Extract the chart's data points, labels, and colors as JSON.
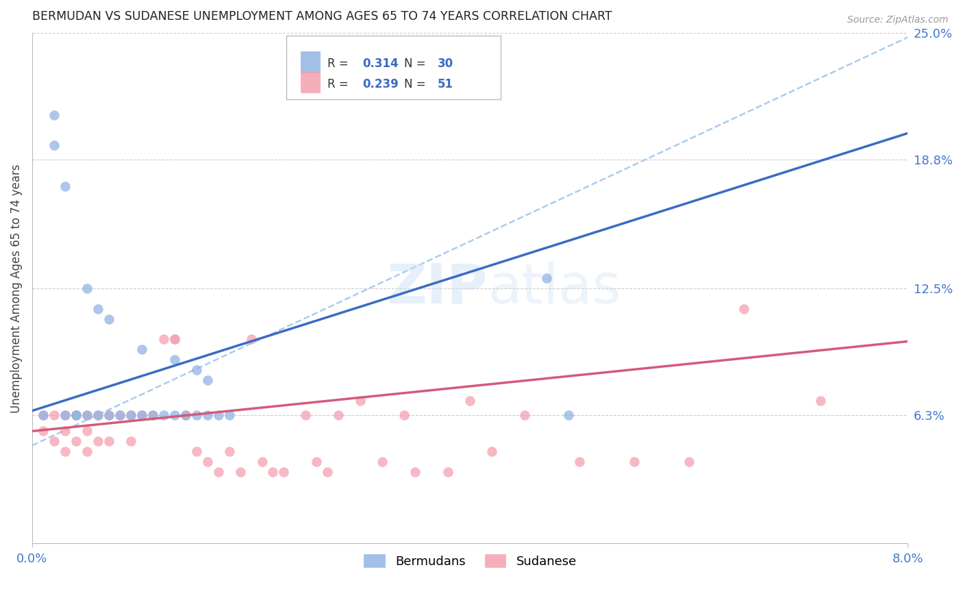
{
  "title": "BERMUDAN VS SUDANESE UNEMPLOYMENT AMONG AGES 65 TO 74 YEARS CORRELATION CHART",
  "source": "Source: ZipAtlas.com",
  "ylabel_label": "Unemployment Among Ages 65 to 74 years",
  "legend_labels": [
    "Bermudans",
    "Sudanese"
  ],
  "bermudan_color": "#92b4e3",
  "sudanese_color": "#f5a0b0",
  "bermudan_line_color": "#3a6bc4",
  "sudanese_line_color": "#d45a7a",
  "bermudan_dashed_color": "#aaccee",
  "r_bermuda": "0.314",
  "n_bermuda": "30",
  "r_sudan": "0.239",
  "n_sudan": "51",
  "xlim": [
    0.0,
    0.08
  ],
  "ylim": [
    0.0,
    0.25
  ],
  "ytick_vals": [
    0.063,
    0.125,
    0.188,
    0.25
  ],
  "ytick_labels": [
    "6.3%",
    "12.5%",
    "18.8%",
    "25.0%"
  ],
  "xtick_vals": [
    0.0,
    0.08
  ],
  "xtick_labels": [
    "0.0%",
    "8.0%"
  ],
  "background_color": "#ffffff",
  "bermudan_x": [
    0.001,
    0.002,
    0.002,
    0.003,
    0.003,
    0.004,
    0.004,
    0.005,
    0.005,
    0.006,
    0.006,
    0.007,
    0.007,
    0.008,
    0.009,
    0.01,
    0.01,
    0.011,
    0.012,
    0.013,
    0.013,
    0.014,
    0.015,
    0.015,
    0.016,
    0.016,
    0.017,
    0.018,
    0.047,
    0.049
  ],
  "bermudan_y": [
    0.063,
    0.21,
    0.195,
    0.175,
    0.063,
    0.063,
    0.063,
    0.125,
    0.063,
    0.115,
    0.063,
    0.11,
    0.063,
    0.063,
    0.063,
    0.063,
    0.095,
    0.063,
    0.063,
    0.063,
    0.09,
    0.063,
    0.063,
    0.085,
    0.063,
    0.08,
    0.063,
    0.063,
    0.13,
    0.063
  ],
  "sudanese_x": [
    0.001,
    0.001,
    0.002,
    0.002,
    0.003,
    0.003,
    0.003,
    0.004,
    0.004,
    0.005,
    0.005,
    0.005,
    0.006,
    0.006,
    0.007,
    0.007,
    0.008,
    0.009,
    0.009,
    0.01,
    0.011,
    0.012,
    0.013,
    0.013,
    0.014,
    0.015,
    0.016,
    0.017,
    0.018,
    0.019,
    0.02,
    0.021,
    0.022,
    0.023,
    0.025,
    0.026,
    0.027,
    0.028,
    0.03,
    0.032,
    0.034,
    0.035,
    0.038,
    0.04,
    0.042,
    0.045,
    0.05,
    0.055,
    0.06,
    0.065,
    0.072
  ],
  "sudanese_y": [
    0.063,
    0.055,
    0.063,
    0.05,
    0.063,
    0.055,
    0.045,
    0.063,
    0.05,
    0.063,
    0.055,
    0.045,
    0.063,
    0.05,
    0.063,
    0.05,
    0.063,
    0.063,
    0.05,
    0.063,
    0.063,
    0.1,
    0.1,
    0.1,
    0.063,
    0.045,
    0.04,
    0.035,
    0.045,
    0.035,
    0.1,
    0.04,
    0.035,
    0.035,
    0.063,
    0.04,
    0.035,
    0.063,
    0.07,
    0.04,
    0.063,
    0.035,
    0.035,
    0.07,
    0.045,
    0.063,
    0.04,
    0.04,
    0.04,
    0.115,
    0.07
  ]
}
